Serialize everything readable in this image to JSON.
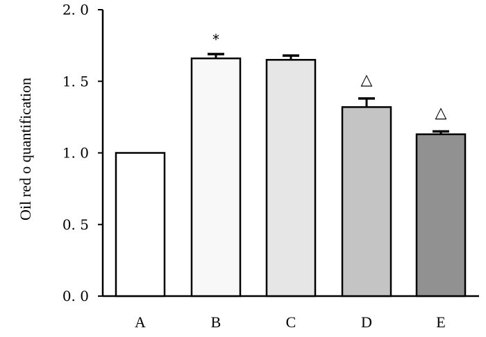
{
  "chart_data": {
    "type": "bar",
    "categories": [
      "A",
      "B",
      "C",
      "D",
      "E"
    ],
    "values": [
      1.0,
      1.66,
      1.65,
      1.32,
      1.13
    ],
    "error": [
      0.0,
      0.03,
      0.03,
      0.06,
      0.02
    ],
    "annotations": [
      "",
      "*",
      "",
      "△",
      "△"
    ],
    "bar_colors": [
      "#ffffff",
      "#f8f8f8",
      "#e6e6e6",
      "#c4c4c4",
      "#919191"
    ],
    "ylabel": "Oil red o quantification",
    "xlabel": "",
    "ylim": [
      0,
      2.0
    ],
    "yticks": [
      0.0,
      0.5,
      1.0,
      1.5,
      2.0
    ],
    "ytick_labels": [
      "0. 0",
      "0. 5",
      "1. 0",
      "1. 5",
      "2. 0"
    ],
    "grid": false
  }
}
